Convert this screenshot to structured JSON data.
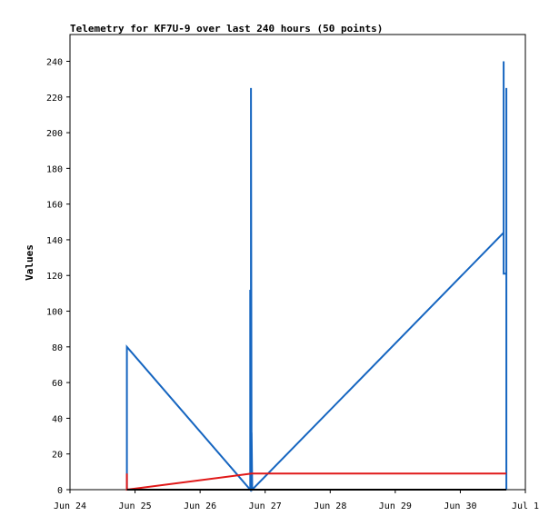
{
  "chart_data": {
    "type": "line",
    "title": "Telemetry for KF7U-9 over last 240 hours (50 points)",
    "xlabel": "",
    "ylabel": "Values",
    "x_unit": "date",
    "xlim": [
      "Jun 24",
      "Jul 1"
    ],
    "ylim": [
      0,
      255
    ],
    "x_ticks": [
      "Jun 24",
      "Jun 25",
      "Jun 26",
      "Jun 27",
      "Jun 28",
      "Jun 29",
      "Jun 30",
      "Jul 1"
    ],
    "y_ticks": [
      0,
      20,
      40,
      60,
      80,
      100,
      120,
      140,
      160,
      180,
      200,
      220,
      240
    ],
    "grid": false,
    "legend": "none",
    "series": [
      {
        "color": "#1565c0",
        "points": [
          [
            "Jun 24 21:00",
            0
          ],
          [
            "Jun 24 21:00",
            80
          ],
          [
            "Jun 26 18:30",
            0
          ],
          [
            "Jun 26 18:30",
            112
          ],
          [
            "Jun 26 18:45",
            0
          ],
          [
            "Jun 26 18:45",
            225
          ],
          [
            "Jun 26 19:00",
            0
          ],
          [
            "Jun 26 19:00",
            32
          ],
          [
            "Jun 26 19:15",
            0
          ],
          [
            "Jun 30 16:00",
            144
          ],
          [
            "Jun 30 16:00",
            240
          ],
          [
            "Jun 30 16:00",
            121
          ],
          [
            "Jun 30 17:00",
            121
          ],
          [
            "Jun 30 17:00",
            0
          ],
          [
            "Jun 30 17:00",
            225
          ],
          [
            "Jun 30 17:00",
            0
          ]
        ]
      },
      {
        "color": "#e01818",
        "points": [
          [
            "Jun 24 21:00",
            9
          ],
          [
            "Jun 24 21:00",
            0
          ],
          [
            "Jun 26 19:00",
            9
          ],
          [
            "Jun 30 17:00",
            9
          ]
        ]
      },
      {
        "color": "#000000",
        "points": [
          [
            "Jun 24 21:00",
            0
          ],
          [
            "Jun 30 17:00",
            0
          ]
        ]
      }
    ]
  }
}
